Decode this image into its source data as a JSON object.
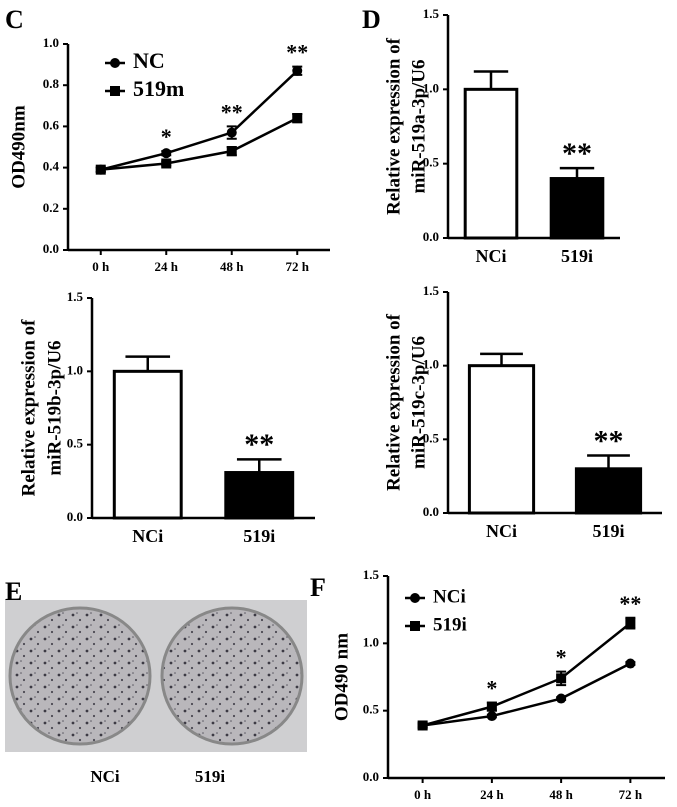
{
  "chart_data": [
    {
      "type": "line",
      "panel": "C",
      "ylabel": "OD490nm",
      "categories": [
        "0 h",
        "24 h",
        "48 h",
        "72 h"
      ],
      "series": [
        {
          "name": "NC",
          "color": "#000000",
          "marker": "circle",
          "values": [
            0.39,
            0.47,
            0.57,
            0.87
          ],
          "errors": [
            0.01,
            0.01,
            0.03,
            0.02
          ]
        },
        {
          "name": "519m",
          "color": "#000000",
          "marker": "square",
          "values": [
            0.39,
            0.42,
            0.48,
            0.64
          ],
          "errors": [
            0.01,
            0.01,
            0.02,
            0.02
          ]
        }
      ],
      "annotations": [
        null,
        "*",
        "**",
        "**"
      ],
      "ylim": [
        0,
        1.0
      ],
      "yticks": [
        {
          "value": 0,
          "label": "0.0"
        },
        0.2,
        0.4,
        0.6,
        0.8,
        {
          "value": 1.0,
          "label": "1.0"
        }
      ]
    },
    {
      "type": "bar",
      "panel": "D",
      "ylabel": [
        "Relative expression of",
        "miR-519a-3p/U6"
      ],
      "categories": [
        "NCi",
        "519i"
      ],
      "values": [
        1.0,
        0.4
      ],
      "errors": [
        0.12,
        0.07
      ],
      "colors": [
        "#ffffff",
        "#000000"
      ],
      "annotations": [
        null,
        "**"
      ],
      "ylim": [
        0,
        1.5
      ],
      "yticks": [
        {
          "value": 0,
          "label": "0.0"
        },
        0.5,
        {
          "value": 1.0,
          "label": "1.0"
        },
        1.5
      ]
    },
    {
      "type": "bar",
      "ylabel": [
        "Relative expression of",
        "miR-519b-3p/U6"
      ],
      "categories": [
        "NCi",
        "519i"
      ],
      "values": [
        1.0,
        0.31
      ],
      "errors": [
        0.1,
        0.09
      ],
      "colors": [
        "#ffffff",
        "#000000"
      ],
      "annotations": [
        null,
        "**"
      ],
      "ylim": [
        0,
        1.5
      ],
      "yticks": [
        {
          "value": 0,
          "label": "0.0"
        },
        0.5,
        {
          "value": 1.0,
          "label": "1.0"
        },
        1.5
      ]
    },
    {
      "type": "bar",
      "ylabel": [
        "Relative expression of",
        "miR-519c-3p/U6"
      ],
      "categories": [
        "NCi",
        "519i"
      ],
      "values": [
        1.0,
        0.3
      ],
      "errors": [
        0.08,
        0.09
      ],
      "colors": [
        "#ffffff",
        "#000000"
      ],
      "annotations": [
        null,
        "**"
      ],
      "ylim": [
        0,
        1.5
      ],
      "yticks": [
        {
          "value": 0,
          "label": "0.0"
        },
        0.5,
        {
          "value": 1.0,
          "label": "1.0"
        },
        1.5
      ]
    },
    {
      "type": "line",
      "panel": "F",
      "ylabel": "OD490 nm",
      "categories": [
        "0 h",
        "24 h",
        "48 h",
        "72 h"
      ],
      "series": [
        {
          "name": "NCi",
          "color": "#000000",
          "marker": "circle",
          "values": [
            0.39,
            0.46,
            0.59,
            0.85
          ],
          "errors": [
            0.01,
            0.01,
            0.01,
            0.01
          ]
        },
        {
          "name": "519i",
          "color": "#000000",
          "marker": "square",
          "values": [
            0.39,
            0.53,
            0.74,
            1.15
          ],
          "errors": [
            0.02,
            0.03,
            0.05,
            0.04
          ]
        }
      ],
      "annotations": [
        null,
        "*",
        "*",
        "**"
      ],
      "ylim": [
        0,
        1.5
      ],
      "yticks": [
        {
          "value": 0,
          "label": "0.0"
        },
        0.5,
        {
          "value": 1.0,
          "label": "1.0"
        },
        1.5
      ]
    }
  ],
  "image_panel": {
    "panel": "E",
    "captions": [
      "NCi",
      "519i"
    ]
  }
}
